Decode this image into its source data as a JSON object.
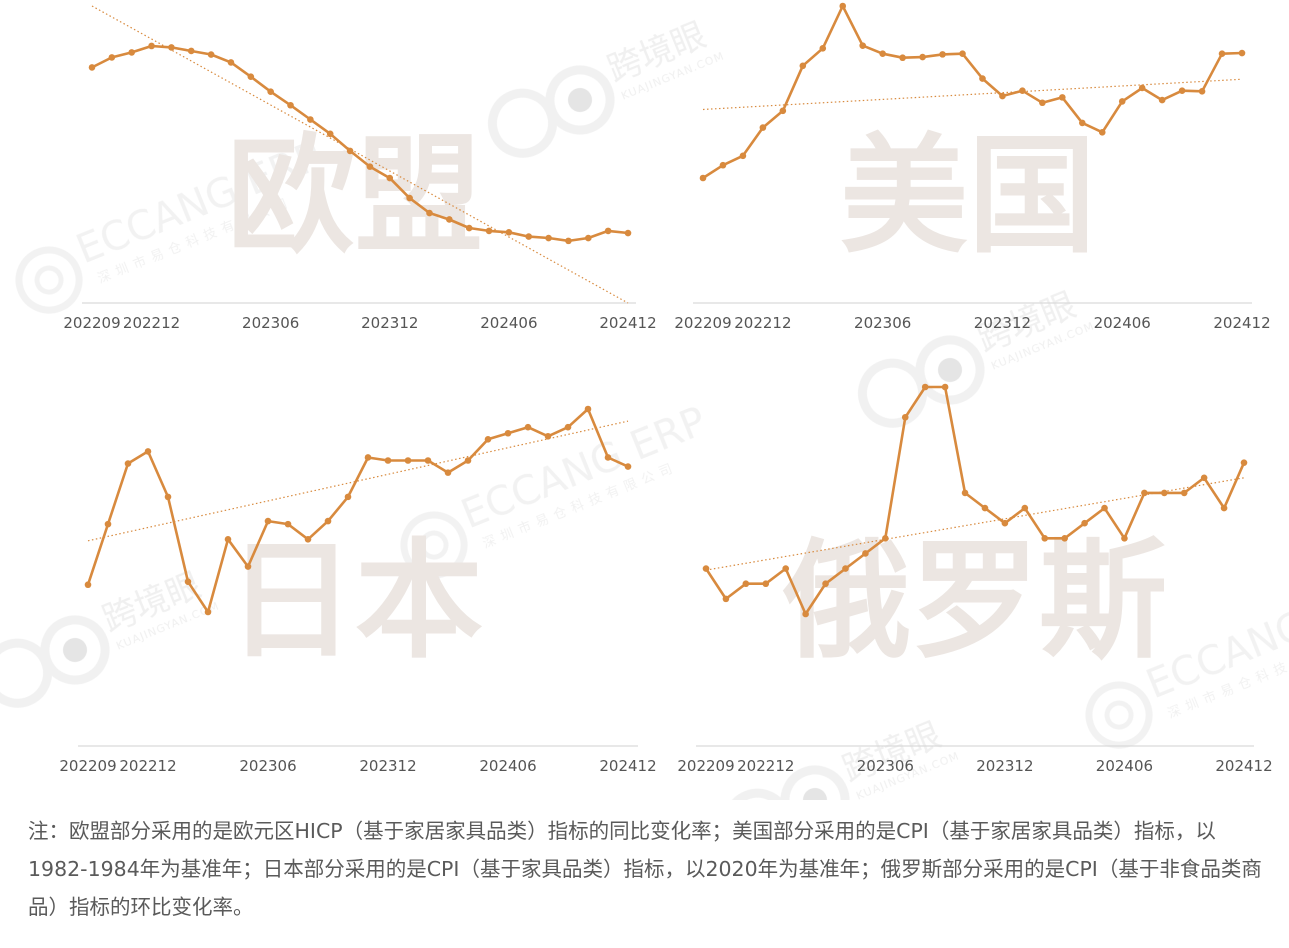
{
  "chart_data": [
    {
      "type": "line",
      "overlay_label": "欧盟",
      "x_tick_labels": [
        "202209",
        "202212",
        "202306",
        "202312",
        "202406",
        "202412"
      ],
      "x_tick_index": [
        0,
        3,
        9,
        15,
        21,
        27
      ],
      "values": [
        11.7,
        12.4,
        12.75,
        13.2,
        13.1,
        12.85,
        12.6,
        12.05,
        11.05,
        10.0,
        9.05,
        8.05,
        7.05,
        5.85,
        4.75,
        3.95,
        2.55,
        1.5,
        1.05,
        0.45,
        0.25,
        0.15,
        -0.15,
        -0.25,
        -0.45,
        -0.25,
        0.25,
        0.1
      ],
      "trend": [
        16.0,
        -4.8
      ],
      "ylim": [
        -4.8,
        16.0
      ],
      "color": "#D88A3E"
    },
    {
      "type": "line",
      "overlay_label": "美国",
      "x_tick_labels": [
        "202209",
        "202212",
        "202306",
        "202312",
        "202406",
        "202412"
      ],
      "x_tick_index": [
        0,
        3,
        9,
        15,
        21,
        27
      ],
      "values": [
        -2.8,
        -1.85,
        -1.15,
        0.95,
        2.2,
        5.55,
        6.85,
        10.0,
        7.05,
        6.45,
        6.15,
        6.2,
        6.4,
        6.45,
        4.6,
        3.3,
        3.7,
        2.8,
        3.2,
        1.3,
        0.6,
        2.9,
        3.9,
        3.0,
        3.7,
        3.65,
        6.45,
        6.5
      ],
      "trend": [
        2.3,
        4.55
      ],
      "ylim": [
        -2.8,
        10.0
      ],
      "color": "#D88A3E"
    },
    {
      "type": "line",
      "overlay_label": "日本",
      "x_tick_labels": [
        "202209",
        "202212",
        "202306",
        "202312",
        "202406",
        "202412"
      ],
      "x_tick_index": [
        0,
        3,
        9,
        15,
        21,
        27
      ],
      "values": [
        -1.2,
        2.8,
        6.8,
        7.6,
        4.6,
        -1.0,
        -3.0,
        1.8,
        0.0,
        3.0,
        2.8,
        1.8,
        3.0,
        4.6,
        7.2,
        7.0,
        7.0,
        7.0,
        6.2,
        7.0,
        8.4,
        8.8,
        9.2,
        8.6,
        9.2,
        10.4,
        7.2,
        6.6
      ],
      "trend": [
        1.7,
        9.6
      ],
      "ylim": [
        -3.0,
        10.4
      ],
      "color": "#D88A3E"
    },
    {
      "type": "line",
      "overlay_label": "俄罗斯",
      "x_tick_labels": [
        "202209",
        "202212",
        "202306",
        "202312",
        "202406",
        "202412"
      ],
      "x_tick_index": [
        0,
        3,
        9,
        15,
        21,
        27
      ],
      "values": [
        -0.1,
        -0.3,
        -0.2,
        -0.2,
        -0.1,
        -0.4,
        -0.2,
        -0.1,
        0.0,
        0.1,
        0.9,
        1.1,
        1.1,
        0.4,
        0.3,
        0.2,
        0.3,
        0.1,
        0.1,
        0.2,
        0.3,
        0.1,
        0.4,
        0.4,
        0.4,
        0.5,
        0.3,
        0.6
      ],
      "trend": [
        -0.11,
        0.5
      ],
      "ylim": [
        -0.4,
        1.1
      ],
      "color": "#D88A3E"
    }
  ],
  "note": "注：欧盟部分采用的是欧元区HICP（基于家居家具品类）指标的同比变化率；美国部分采用的是CPI（基于家居家具品类）指标，以1982-1984年为基准年；日本部分采用的是CPI（基于家具品类）指标，以2020年为基准年；俄罗斯部分采用的是CPI（基于非食品类商品）指标的环比变化率。",
  "watermarks": {
    "kjy_brand": "跨境眼",
    "kjy_url": "KUAJINGYAN.COM",
    "eccang_brand": "ECCANG ERP",
    "eccang_company": "深圳市易仓科技有限公司"
  }
}
